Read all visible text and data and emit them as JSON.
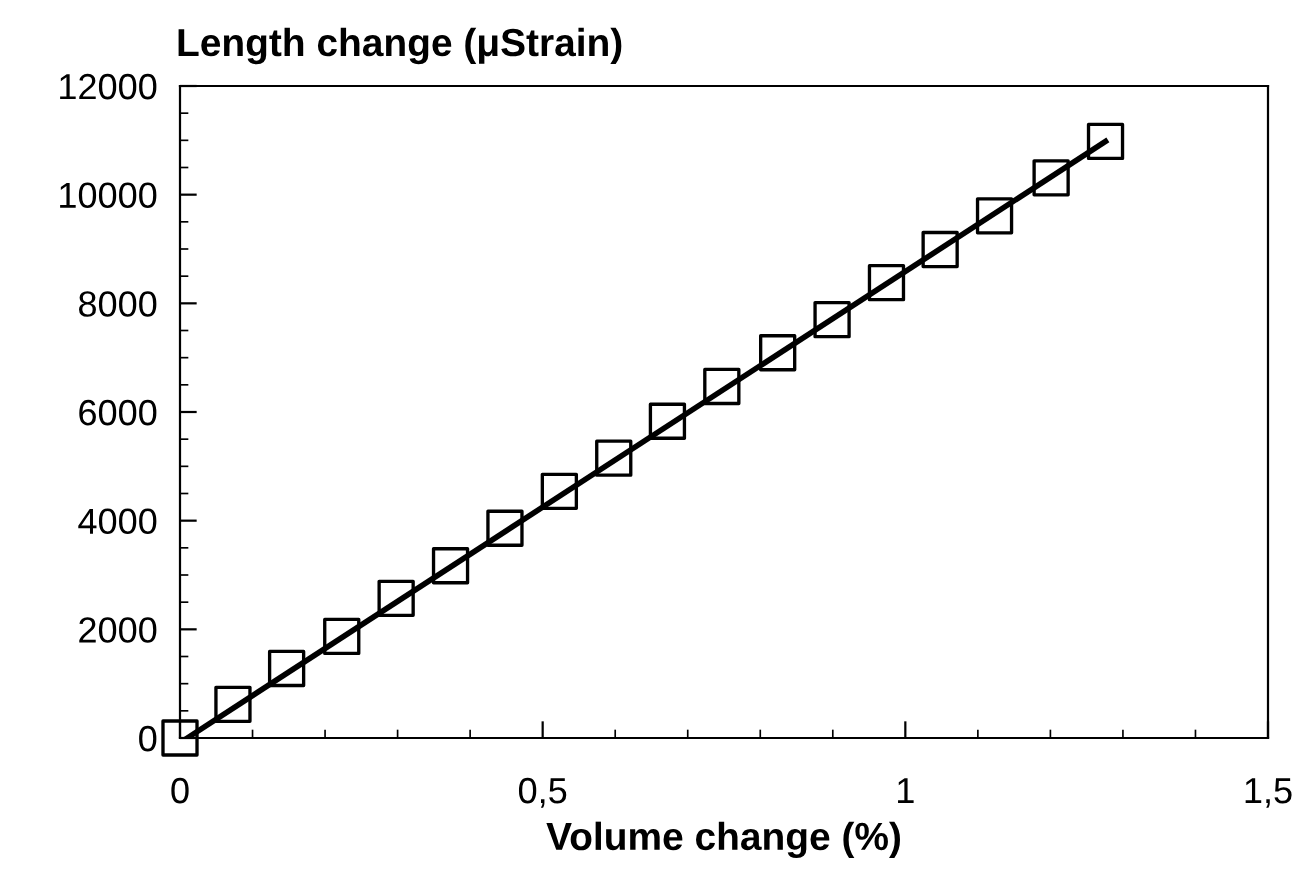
{
  "chart_data": {
    "type": "scatter",
    "xlabel": "Volume change (%)",
    "ylabel": "Length change (μStrain)",
    "xlim": [
      0,
      1.5
    ],
    "xticks": [
      0,
      {
        "value": 0.5,
        "label": "0,5"
      },
      1,
      {
        "value": 1.5,
        "label": "1,5"
      }
    ],
    "ylim": [
      0,
      12000
    ],
    "yticks": [
      0,
      2000,
      4000,
      6000,
      8000,
      10000,
      12000
    ],
    "grid": false,
    "legend": false,
    "series": [
      {
        "color": "#000000",
        "marker": "square",
        "x": [
          0,
          0.073,
          0.147,
          0.223,
          0.298,
          0.373,
          0.448,
          0.523,
          0.598,
          0.672,
          0.747,
          0.824,
          0.899,
          0.974,
          1.048,
          1.123,
          1.201,
          1.276
        ],
        "values": [
          0,
          620,
          1280,
          1870,
          2570,
          3170,
          3860,
          4540,
          5150,
          5830,
          6470,
          7090,
          7700,
          8380,
          8990,
          9610,
          10310,
          10980
        ]
      },
      {
        "type": "line",
        "color": "#000000",
        "line_style": "solid",
        "marker": "none",
        "x": [
          0.01,
          1.276
        ],
        "values": [
          0,
          10980
        ]
      }
    ]
  }
}
